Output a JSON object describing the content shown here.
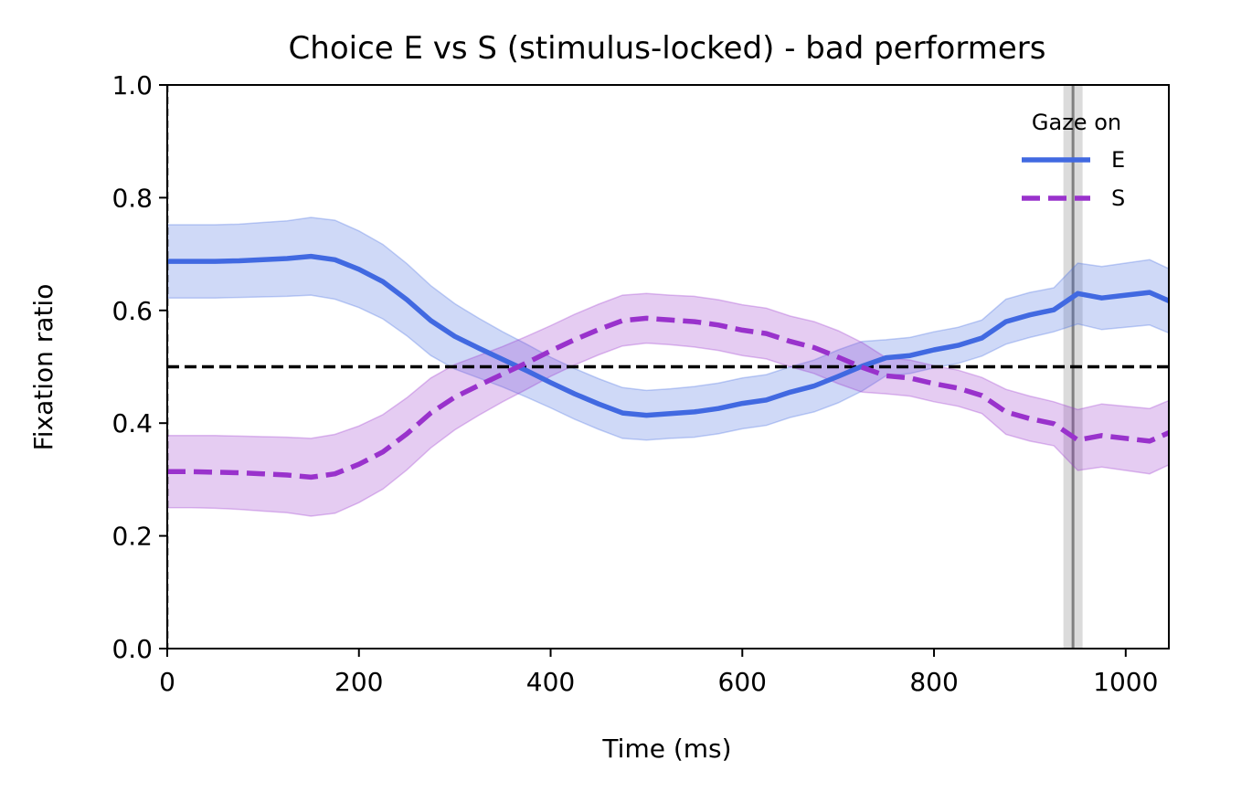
{
  "chart_data": {
    "type": "line",
    "title": "Choice E vs S (stimulus-locked) - bad performers",
    "xlabel": "Time (ms)",
    "ylabel": "Fixation ratio",
    "xlim": [
      0,
      1045
    ],
    "ylim": [
      0.0,
      1.0
    ],
    "xticks": [
      0,
      200,
      400,
      600,
      800,
      1000
    ],
    "yticks": [
      0.0,
      0.2,
      0.4,
      0.6,
      0.8,
      1.0
    ],
    "xtick_labels": [
      "0",
      "200",
      "400",
      "600",
      "800",
      "1000"
    ],
    "ytick_labels": [
      "0.0",
      "0.2",
      "0.4",
      "0.6",
      "0.8",
      "1.0"
    ],
    "grid": false,
    "legend": {
      "title": "Gaze on",
      "placement": "upper-right",
      "frame": false
    },
    "reference_lines": {
      "chance_level": 0.5,
      "stimulus_onset_ms": 0,
      "mean_response_ms": 945,
      "mean_response_band_ms": [
        935,
        955
      ]
    },
    "x": [
      0,
      25,
      50,
      75,
      100,
      125,
      150,
      175,
      200,
      225,
      250,
      275,
      300,
      325,
      350,
      375,
      400,
      425,
      450,
      475,
      500,
      525,
      550,
      575,
      600,
      625,
      650,
      675,
      700,
      725,
      750,
      775,
      800,
      825,
      850,
      875,
      900,
      925,
      950,
      975,
      1000,
      1025,
      1045
    ],
    "series": [
      {
        "name": "E",
        "color": "#4169e1",
        "line_style": "solid",
        "values": [
          0.687,
          0.687,
          0.687,
          0.688,
          0.69,
          0.692,
          0.696,
          0.69,
          0.673,
          0.651,
          0.619,
          0.582,
          0.554,
          0.533,
          0.513,
          0.493,
          0.472,
          0.452,
          0.434,
          0.418,
          0.414,
          0.417,
          0.42,
          0.426,
          0.435,
          0.441,
          0.455,
          0.466,
          0.483,
          0.501,
          0.516,
          0.52,
          0.53,
          0.538,
          0.551,
          0.58,
          0.592,
          0.601,
          0.63,
          0.622,
          0.627,
          0.632,
          0.617
        ],
        "upper": [
          0.752,
          0.752,
          0.752,
          0.753,
          0.756,
          0.759,
          0.765,
          0.76,
          0.741,
          0.717,
          0.683,
          0.644,
          0.612,
          0.586,
          0.562,
          0.54,
          0.517,
          0.497,
          0.479,
          0.463,
          0.458,
          0.461,
          0.465,
          0.471,
          0.48,
          0.486,
          0.5,
          0.512,
          0.53,
          0.545,
          0.548,
          0.552,
          0.562,
          0.57,
          0.583,
          0.62,
          0.632,
          0.64,
          0.684,
          0.678,
          0.684,
          0.69,
          0.674
        ],
        "lower": [
          0.622,
          0.622,
          0.622,
          0.623,
          0.624,
          0.625,
          0.627,
          0.62,
          0.605,
          0.585,
          0.555,
          0.52,
          0.496,
          0.48,
          0.464,
          0.446,
          0.427,
          0.407,
          0.389,
          0.373,
          0.37,
          0.373,
          0.375,
          0.381,
          0.39,
          0.396,
          0.41,
          0.42,
          0.436,
          0.457,
          0.484,
          0.488,
          0.498,
          0.506,
          0.519,
          0.54,
          0.552,
          0.562,
          0.576,
          0.566,
          0.57,
          0.574,
          0.56
        ]
      },
      {
        "name": "S",
        "color": "#9932cc",
        "line_style": "dashed",
        "values": [
          0.314,
          0.314,
          0.313,
          0.312,
          0.31,
          0.308,
          0.304,
          0.31,
          0.327,
          0.349,
          0.381,
          0.418,
          0.446,
          0.467,
          0.487,
          0.507,
          0.528,
          0.548,
          0.566,
          0.582,
          0.586,
          0.583,
          0.58,
          0.574,
          0.565,
          0.559,
          0.545,
          0.534,
          0.517,
          0.499,
          0.484,
          0.48,
          0.47,
          0.462,
          0.449,
          0.42,
          0.408,
          0.399,
          0.37,
          0.378,
          0.373,
          0.368,
          0.383
        ],
        "upper": [
          0.378,
          0.378,
          0.378,
          0.377,
          0.376,
          0.375,
          0.373,
          0.38,
          0.395,
          0.415,
          0.445,
          0.48,
          0.504,
          0.52,
          0.536,
          0.554,
          0.573,
          0.593,
          0.611,
          0.627,
          0.63,
          0.627,
          0.625,
          0.619,
          0.61,
          0.604,
          0.59,
          0.58,
          0.564,
          0.543,
          0.516,
          0.512,
          0.502,
          0.494,
          0.481,
          0.46,
          0.448,
          0.438,
          0.424,
          0.434,
          0.43,
          0.426,
          0.44
        ],
        "lower": [
          0.25,
          0.25,
          0.249,
          0.247,
          0.244,
          0.241,
          0.235,
          0.24,
          0.259,
          0.283,
          0.317,
          0.356,
          0.388,
          0.414,
          0.438,
          0.46,
          0.483,
          0.503,
          0.521,
          0.537,
          0.542,
          0.539,
          0.535,
          0.529,
          0.52,
          0.514,
          0.5,
          0.488,
          0.47,
          0.455,
          0.452,
          0.448,
          0.438,
          0.43,
          0.417,
          0.38,
          0.368,
          0.36,
          0.316,
          0.322,
          0.316,
          0.31,
          0.326
        ]
      }
    ]
  }
}
